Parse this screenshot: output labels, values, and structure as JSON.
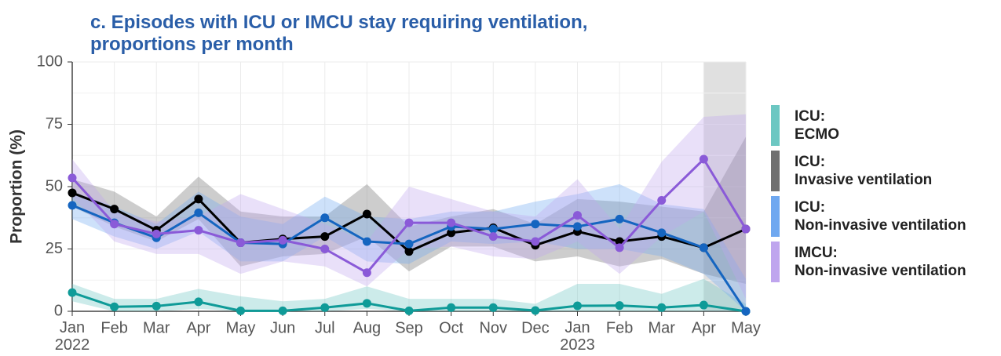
{
  "chart_data": {
    "type": "line",
    "title": "c. Episodes with ICU or IMCU stay requiring ventilation, proportions per month",
    "y_label": "Proportion (%)",
    "categories": [
      "Jan 2022",
      "Feb",
      "Mar",
      "Apr",
      "May",
      "Jun",
      "Jul",
      "Aug",
      "Sep",
      "Oct",
      "Nov",
      "Dec",
      "Jan 2023",
      "Feb",
      "Mar",
      "Apr",
      "May"
    ],
    "ylim": [
      0,
      100
    ],
    "yticks": [
      0,
      25,
      50,
      75,
      100
    ],
    "grid": true,
    "shade": {
      "from": 15,
      "to": 16,
      "color": "#e0e0e0"
    },
    "series": [
      {
        "name": "ICU: ECMO",
        "color": "#0f9b98",
        "band_color": "#6cc7c2",
        "values": [
          7.5,
          1.8,
          2.1,
          3.8,
          0.2,
          0.2,
          1.5,
          3.2,
          0.2,
          1.5,
          1.5,
          0.3,
          2.2,
          2.3,
          1.5,
          2.5,
          0
        ],
        "upper": [
          11,
          5,
          5,
          9,
          6,
          4,
          5,
          10,
          5,
          5,
          5,
          3,
          11,
          11,
          7,
          13,
          3
        ],
        "lower": [
          4,
          0,
          0,
          1,
          0,
          0,
          0,
          1,
          0,
          0,
          0,
          0,
          0,
          0,
          0,
          0,
          0
        ]
      },
      {
        "name": "ICU: Invasive ventilation",
        "color": "#000000",
        "band_color": "#707070",
        "values": [
          47.5,
          41,
          32.5,
          45,
          27.5,
          29,
          30,
          39,
          24,
          31.5,
          33.5,
          26.5,
          32,
          28,
          30,
          25.5,
          33
        ],
        "upper": [
          53,
          48,
          38,
          54,
          40,
          38,
          38,
          51,
          34,
          38,
          41,
          35,
          45,
          44,
          42,
          40,
          70
        ],
        "lower": [
          42,
          34,
          28,
          37,
          18,
          22,
          23,
          30,
          16,
          26,
          26,
          20,
          22,
          18,
          21,
          15,
          11
        ]
      },
      {
        "name": "ICU: Non-invasive ventilation",
        "color": "#1565c0",
        "band_color": "#6fa8f0",
        "values": [
          42.5,
          35.5,
          29.5,
          39.5,
          27.5,
          27,
          37.5,
          28,
          27,
          34,
          33,
          35,
          34,
          37,
          31.5,
          25.5,
          0
        ],
        "upper": [
          48,
          42,
          35,
          48,
          38,
          35,
          46,
          38,
          37,
          40,
          40,
          44,
          47,
          51,
          43,
          41,
          13
        ],
        "lower": [
          37,
          30,
          25,
          32,
          20,
          20,
          30,
          20,
          19,
          28,
          27,
          28,
          25,
          25,
          22,
          15,
          0
        ]
      },
      {
        "name": "IMCU: Non-invasive ventilation",
        "color": "#8a5ad8",
        "band_color": "#bfa5ee",
        "values": [
          53.5,
          35,
          31,
          32.5,
          27.5,
          28.5,
          25,
          15.5,
          35.5,
          35.5,
          30,
          28,
          38.5,
          25.5,
          44.5,
          61,
          33
        ],
        "upper": [
          61,
          40,
          36,
          38,
          47,
          41,
          35,
          28,
          50,
          45,
          40,
          38,
          53,
          33,
          60,
          78,
          79
        ],
        "lower": [
          46,
          28,
          23,
          23,
          15,
          20,
          18,
          10,
          25,
          26,
          22,
          21,
          28,
          15,
          30,
          40,
          5
        ]
      }
    ]
  }
}
